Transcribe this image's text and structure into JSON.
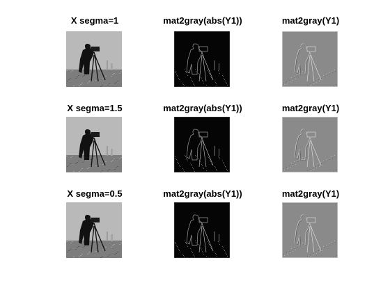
{
  "rows": [
    {
      "titles": [
        "X segma=1",
        "mat2gray(abs(Y1))",
        "mat2gray(Y1)"
      ]
    },
    {
      "titles": [
        "X segma=1.5",
        "mat2gray(abs(Y1))",
        "mat2gray(Y1)"
      ]
    },
    {
      "titles": [
        "X segma=0.5",
        "mat2gray(abs(Y1))",
        "mat2gray(Y1)"
      ]
    }
  ],
  "colors": {
    "background": "#ffffff",
    "original_sky": "#b9b9b9",
    "abs_background": "#050505",
    "signed_background": "#8a8a8a"
  }
}
